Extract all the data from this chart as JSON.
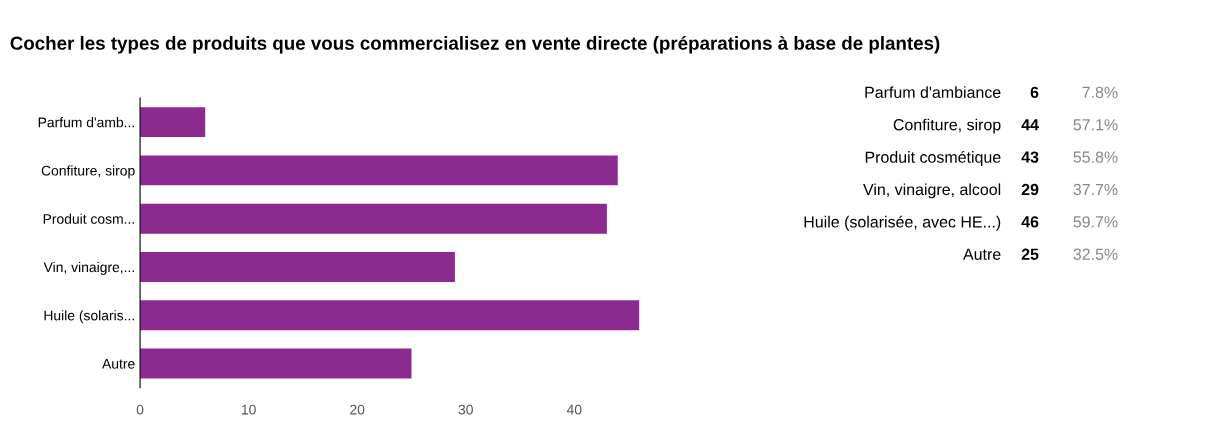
{
  "chart_data": [
    {
      "type": "bar",
      "orientation": "horizontal",
      "title": "Cocher les types de produits que vous commercialisez en vente directe (préparations à base de plantes)",
      "categories": [
        "Parfum d'amb...",
        "Confiture, sirop",
        "Produit cosm...",
        "Vin, vinaigre,...",
        "Huile (solaris...",
        "Autre"
      ],
      "values": [
        6,
        44,
        43,
        29,
        46,
        25
      ],
      "color": "#8b2a8f",
      "xlim": [
        0,
        46
      ],
      "xticks": [
        0,
        10,
        20,
        30,
        40
      ],
      "grid": false
    },
    {
      "type": "other",
      "annotations": [
        "Parfum d'ambiance",
        "6",
        "7.8%",
        "Confiture, sirop",
        "44",
        "57.1%",
        "Produit cosmétique",
        "43",
        "55.8%",
        "Vin, vinaigre, alcool",
        "29",
        "37.7%",
        "Huile (solarisée, avec HE...)",
        "46",
        "59.7%",
        "Autre",
        "25",
        "32.5%"
      ]
    }
  ]
}
